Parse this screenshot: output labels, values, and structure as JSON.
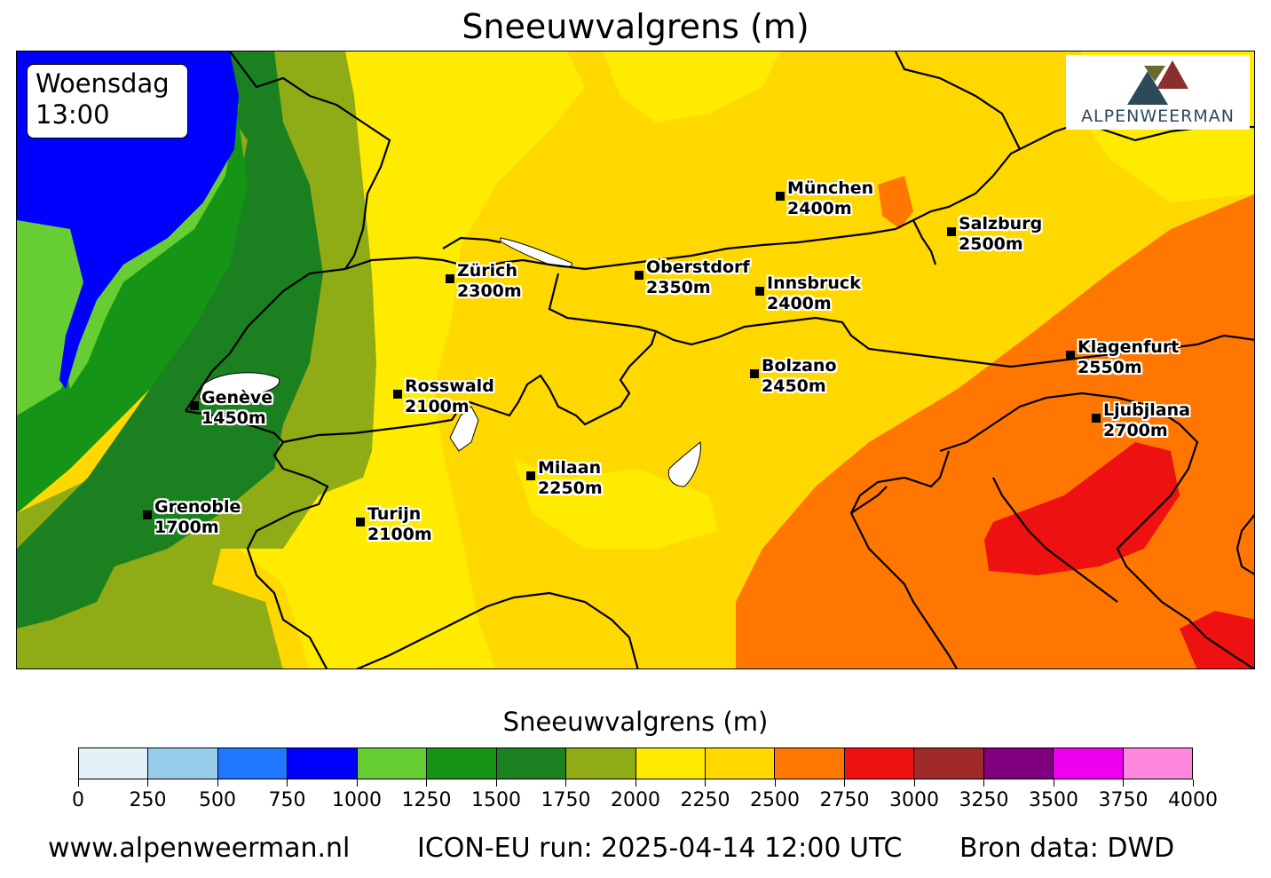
{
  "title": "Sneeuwvalgrens (m)",
  "time": {
    "day": "Woensdag",
    "hour": "13:00"
  },
  "logo": {
    "text": "ALPENWEERMAN",
    "colors": [
      "#6b6a2e",
      "#8b2e2e",
      "#2c4a5a"
    ]
  },
  "cities": [
    {
      "name": "München",
      "value": "2400m"
    },
    {
      "name": "Salzburg",
      "value": "2500m"
    },
    {
      "name": "Zürich",
      "value": "2300m"
    },
    {
      "name": "Oberstdorf",
      "value": "2350m"
    },
    {
      "name": "Innsbruck",
      "value": "2400m"
    },
    {
      "name": "Klagenfurt",
      "value": "2550m"
    },
    {
      "name": "Bolzano",
      "value": "2450m"
    },
    {
      "name": "Rosswald",
      "value": "2100m"
    },
    {
      "name": "Genève",
      "value": "1450m"
    },
    {
      "name": "Ljubjlana",
      "value": "2700m"
    },
    {
      "name": "Milaan",
      "value": "2250m"
    },
    {
      "name": "Grenoble",
      "value": "1700m"
    },
    {
      "name": "Turijn",
      "value": "2100m"
    }
  ],
  "colorbar": {
    "title": "Sneeuwvalgrens (m)",
    "ticks": [
      "0",
      "250",
      "500",
      "750",
      "1000",
      "1250",
      "1500",
      "1750",
      "2000",
      "2250",
      "2500",
      "2750",
      "3000",
      "3250",
      "3500",
      "3750",
      "4000"
    ],
    "colors": [
      "#e3f1f8",
      "#98cdec",
      "#1f78ff",
      "#0000ff",
      "#66cd33",
      "#159415",
      "#1a8020",
      "#8fab16",
      "#ffeb00",
      "#ffd800",
      "#ff7700",
      "#ee1111",
      "#a02a2a",
      "#800080",
      "#ee00ee",
      "#ff88dd"
    ]
  },
  "footer": {
    "site": "www.alpenweerman.nl",
    "run": "ICON-EU run: 2025-04-14 12:00 UTC",
    "source": "Bron data: DWD"
  }
}
